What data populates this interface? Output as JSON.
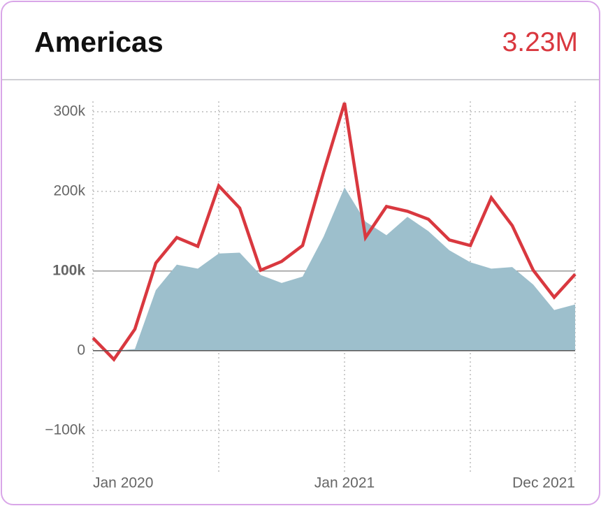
{
  "header": {
    "title": "Americas",
    "value": "3.23M"
  },
  "chart_data": {
    "type": "line",
    "categories": [
      "Jan 2020",
      null,
      null,
      null,
      null,
      null,
      null,
      null,
      null,
      null,
      null,
      null,
      "Jan 2021",
      null,
      null,
      null,
      null,
      null,
      null,
      null,
      null,
      null,
      null,
      "Dec 2021"
    ],
    "series": [
      {
        "kind": "area",
        "color": "#9dbfcc",
        "values": [
          0,
          0,
          2000,
          76000,
          108000,
          103000,
          122000,
          123000,
          95000,
          85000,
          93000,
          143000,
          205000,
          162000,
          145000,
          168000,
          150000,
          126000,
          111000,
          103000,
          105000,
          83000,
          51000,
          58000
        ]
      },
      {
        "kind": "line",
        "color": "#d9383f",
        "values": [
          16000,
          -11000,
          27000,
          110000,
          142000,
          131000,
          207000,
          179000,
          101000,
          112000,
          132000,
          224000,
          311000,
          142000,
          181000,
          175000,
          165000,
          139000,
          132000,
          192000,
          157000,
          101000,
          67000,
          96000
        ]
      }
    ],
    "ylim": [
      -152000,
      313000
    ],
    "yticks": [
      {
        "value": -100000,
        "label": "−100k"
      },
      0,
      {
        "value": 100000,
        "label": "100k"
      },
      {
        "value": 200000,
        "label": "200k"
      },
      {
        "value": 300000,
        "label": "300k"
      }
    ],
    "reference_line": 100000,
    "grid": true
  }
}
